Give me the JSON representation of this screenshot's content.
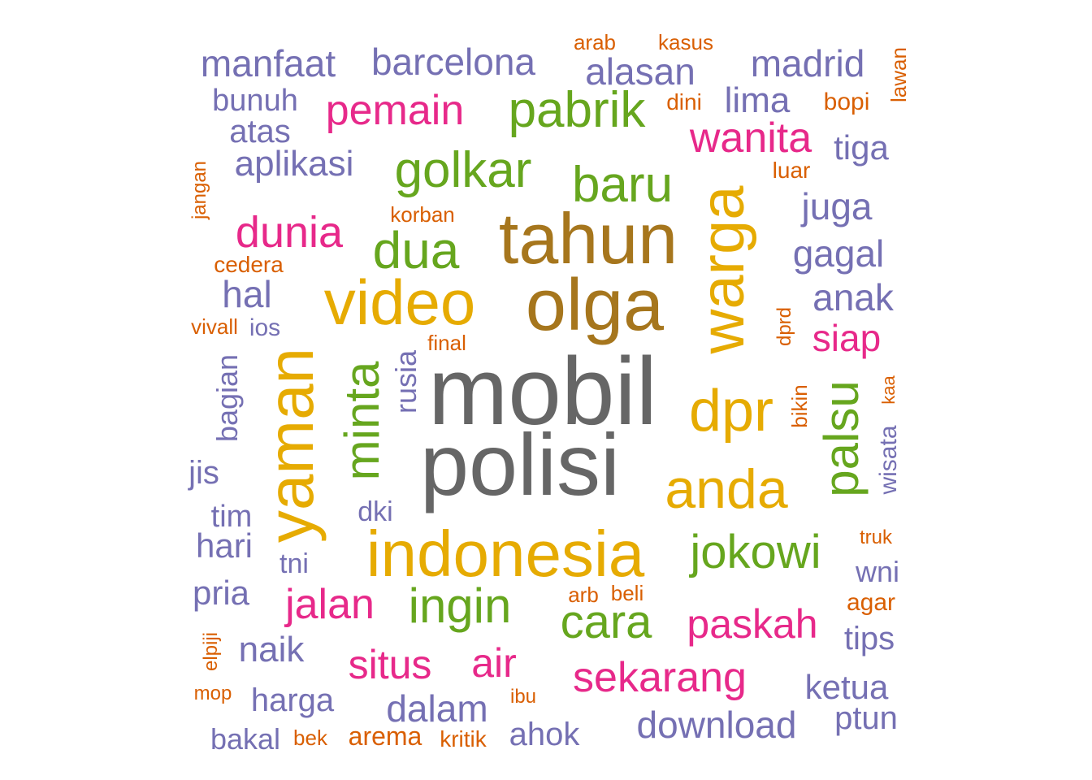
{
  "colors": {
    "gray": "#666666",
    "brown": "#a6761d",
    "gold": "#e6ab02",
    "green": "#66a61e",
    "magenta": "#e7298a",
    "purple": "#7570b3",
    "orange": "#d95f02"
  },
  "words": [
    {
      "text": "mobil",
      "color": "gray"
    },
    {
      "text": "polisi",
      "color": "gray"
    },
    {
      "text": "olga",
      "color": "brown"
    },
    {
      "text": "tahun",
      "color": "brown"
    },
    {
      "text": "video",
      "color": "gold"
    },
    {
      "text": "indonesia",
      "color": "gold"
    },
    {
      "text": "yaman",
      "color": "gold"
    },
    {
      "text": "warga",
      "color": "gold"
    },
    {
      "text": "dpr",
      "color": "gold"
    },
    {
      "text": "anda",
      "color": "gold"
    },
    {
      "text": "golkar",
      "color": "green"
    },
    {
      "text": "dua",
      "color": "green"
    },
    {
      "text": "baru",
      "color": "green"
    },
    {
      "text": "pabrik",
      "color": "green"
    },
    {
      "text": "minta",
      "color": "green"
    },
    {
      "text": "palsu",
      "color": "green"
    },
    {
      "text": "jokowi",
      "color": "green"
    },
    {
      "text": "ingin",
      "color": "green"
    },
    {
      "text": "cara",
      "color": "green"
    },
    {
      "text": "pemain",
      "color": "magenta"
    },
    {
      "text": "dunia",
      "color": "magenta"
    },
    {
      "text": "wanita",
      "color": "magenta"
    },
    {
      "text": "siap",
      "color": "magenta"
    },
    {
      "text": "jalan",
      "color": "magenta"
    },
    {
      "text": "paskah",
      "color": "magenta"
    },
    {
      "text": "sekarang",
      "color": "magenta"
    },
    {
      "text": "situs",
      "color": "magenta"
    },
    {
      "text": "air",
      "color": "magenta"
    },
    {
      "text": "manfaat",
      "color": "purple"
    },
    {
      "text": "barcelona",
      "color": "purple"
    },
    {
      "text": "alasan",
      "color": "purple"
    },
    {
      "text": "madrid",
      "color": "purple"
    },
    {
      "text": "bunuh",
      "color": "purple"
    },
    {
      "text": "lima",
      "color": "purple"
    },
    {
      "text": "atas",
      "color": "purple"
    },
    {
      "text": "aplikasi",
      "color": "purple"
    },
    {
      "text": "tiga",
      "color": "purple"
    },
    {
      "text": "juga",
      "color": "purple"
    },
    {
      "text": "gagal",
      "color": "purple"
    },
    {
      "text": "hal",
      "color": "purple"
    },
    {
      "text": "anak",
      "color": "purple"
    },
    {
      "text": "rusia",
      "color": "purple"
    },
    {
      "text": "bagian",
      "color": "purple"
    },
    {
      "text": "ios",
      "color": "purple"
    },
    {
      "text": "jis",
      "color": "purple"
    },
    {
      "text": "wisata",
      "color": "purple"
    },
    {
      "text": "tim",
      "color": "purple"
    },
    {
      "text": "dki",
      "color": "purple"
    },
    {
      "text": "hari",
      "color": "purple"
    },
    {
      "text": "tni",
      "color": "purple"
    },
    {
      "text": "wni",
      "color": "purple"
    },
    {
      "text": "pria",
      "color": "purple"
    },
    {
      "text": "tips",
      "color": "purple"
    },
    {
      "text": "naik",
      "color": "purple"
    },
    {
      "text": "ketua",
      "color": "purple"
    },
    {
      "text": "harga",
      "color": "purple"
    },
    {
      "text": "dalam",
      "color": "purple"
    },
    {
      "text": "ptun",
      "color": "purple"
    },
    {
      "text": "download",
      "color": "purple"
    },
    {
      "text": "ahok",
      "color": "purple"
    },
    {
      "text": "bakal",
      "color": "purple"
    },
    {
      "text": "arab",
      "color": "orange"
    },
    {
      "text": "kasus",
      "color": "orange"
    },
    {
      "text": "lawan",
      "color": "orange"
    },
    {
      "text": "dini",
      "color": "orange"
    },
    {
      "text": "bopi",
      "color": "orange"
    },
    {
      "text": "jangan",
      "color": "orange"
    },
    {
      "text": "luar",
      "color": "orange"
    },
    {
      "text": "korban",
      "color": "orange"
    },
    {
      "text": "cedera",
      "color": "orange"
    },
    {
      "text": "vivall",
      "color": "orange"
    },
    {
      "text": "dprd",
      "color": "orange"
    },
    {
      "text": "final",
      "color": "orange"
    },
    {
      "text": "bikin",
      "color": "orange"
    },
    {
      "text": "kaa",
      "color": "orange"
    },
    {
      "text": "truk",
      "color": "orange"
    },
    {
      "text": "arb",
      "color": "orange"
    },
    {
      "text": "beli",
      "color": "orange"
    },
    {
      "text": "agar",
      "color": "orange"
    },
    {
      "text": "elpiji",
      "color": "orange"
    },
    {
      "text": "mop",
      "color": "orange"
    },
    {
      "text": "ibu",
      "color": "orange"
    },
    {
      "text": "bek",
      "color": "orange"
    },
    {
      "text": "arema",
      "color": "orange"
    },
    {
      "text": "kritik",
      "color": "orange"
    }
  ]
}
